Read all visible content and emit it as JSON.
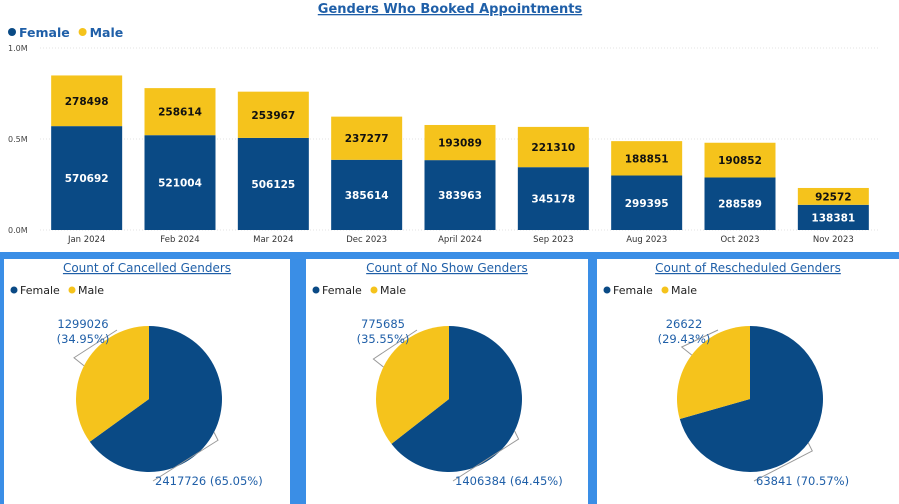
{
  "colors": {
    "female": "#0a4a85",
    "male": "#f5c31c",
    "title": "#1f5fa8",
    "page_bg": "#3a8ee6"
  },
  "chart_data": [
    {
      "type": "bar",
      "stacked": true,
      "title": "Genders Who Booked Appointments",
      "legend": [
        "Female",
        "Male"
      ],
      "legend_position": "top-left",
      "categories": [
        "Jan 2024",
        "Feb 2024",
        "Mar 2024",
        "Dec 2023",
        "April 2024",
        "Sep 2023",
        "Aug 2023",
        "Oct 2023",
        "Nov 2023"
      ],
      "series": [
        {
          "name": "Female",
          "values": [
            570692,
            521004,
            506125,
            385614,
            383963,
            345178,
            299395,
            288589,
            138381
          ]
        },
        {
          "name": "Male",
          "values": [
            278498,
            258614,
            253967,
            237277,
            193089,
            221310,
            188851,
            190852,
            92572
          ]
        }
      ],
      "yticks": [
        "0.0M",
        "0.5M",
        "1.0M"
      ],
      "ylim": [
        0,
        1000000
      ],
      "grid": true
    },
    {
      "type": "pie",
      "title": "Count of Cancelled Genders",
      "legend": [
        "Female",
        "Male"
      ],
      "slices": [
        {
          "name": "Female",
          "value": 2417726,
          "label": "2417726 (65.05%)"
        },
        {
          "name": "Male",
          "value": 1299026,
          "label": "1299026",
          "pct_label": "(34.95%)"
        }
      ]
    },
    {
      "type": "pie",
      "title": "Count of No Show Genders",
      "legend": [
        "Female",
        "Male"
      ],
      "slices": [
        {
          "name": "Female",
          "value": 1406384,
          "label": "1406384 (64.45%)"
        },
        {
          "name": "Male",
          "value": 775685,
          "label": "775685",
          "pct_label": "(35.55%)"
        }
      ]
    },
    {
      "type": "pie",
      "title": "Count of Rescheduled Genders",
      "legend": [
        "Female",
        "Male"
      ],
      "slices": [
        {
          "name": "Female",
          "value": 63841,
          "label": "63841 (70.57%)"
        },
        {
          "name": "Male",
          "value": 26622,
          "label": "26622",
          "pct_label": "(29.43%)"
        }
      ]
    }
  ]
}
